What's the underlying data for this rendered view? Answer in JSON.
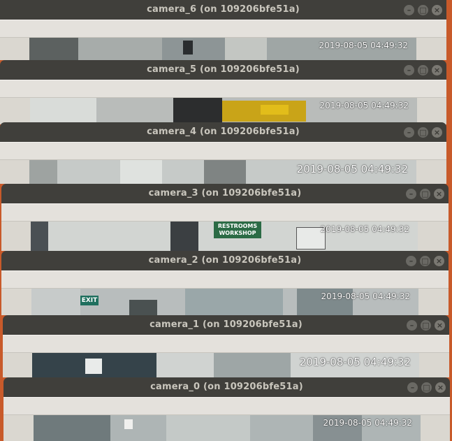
{
  "desktop": {
    "background": "#c85a2a"
  },
  "windows": [
    {
      "id": "camera_6",
      "title": "camera_6 (on 109206bfe51a)",
      "timestamp": "2019-08-05 04:49:32"
    },
    {
      "id": "camera_5",
      "title": "camera_5 (on 109206bfe51a)",
      "timestamp": "2019-08-05 04:49:32"
    },
    {
      "id": "camera_4",
      "title": "camera_4 (on 109206bfe51a)",
      "timestamp": "2019-08-05 04:49:32"
    },
    {
      "id": "camera_3",
      "title": "camera_3 (on 109206bfe51a)",
      "timestamp": "2019-08-05 04:49:32",
      "sign_text": [
        "RESTROOMS",
        "WORKSHOP"
      ]
    },
    {
      "id": "camera_2",
      "title": "camera_2 (on 109206bfe51a)",
      "timestamp": "2019-08-05 04:49:32",
      "sign_text": "EXIT"
    },
    {
      "id": "camera_1",
      "title": "camera_1 (on 109206bfe51a)",
      "timestamp": "2019-08-05 04:49:32"
    },
    {
      "id": "camera_0",
      "title": "camera_0 (on 109206bfe51a)",
      "timestamp": "2019-08-05 04:49:32"
    }
  ],
  "controls": {
    "minimize": "–",
    "maximize": "□",
    "close": "×"
  }
}
